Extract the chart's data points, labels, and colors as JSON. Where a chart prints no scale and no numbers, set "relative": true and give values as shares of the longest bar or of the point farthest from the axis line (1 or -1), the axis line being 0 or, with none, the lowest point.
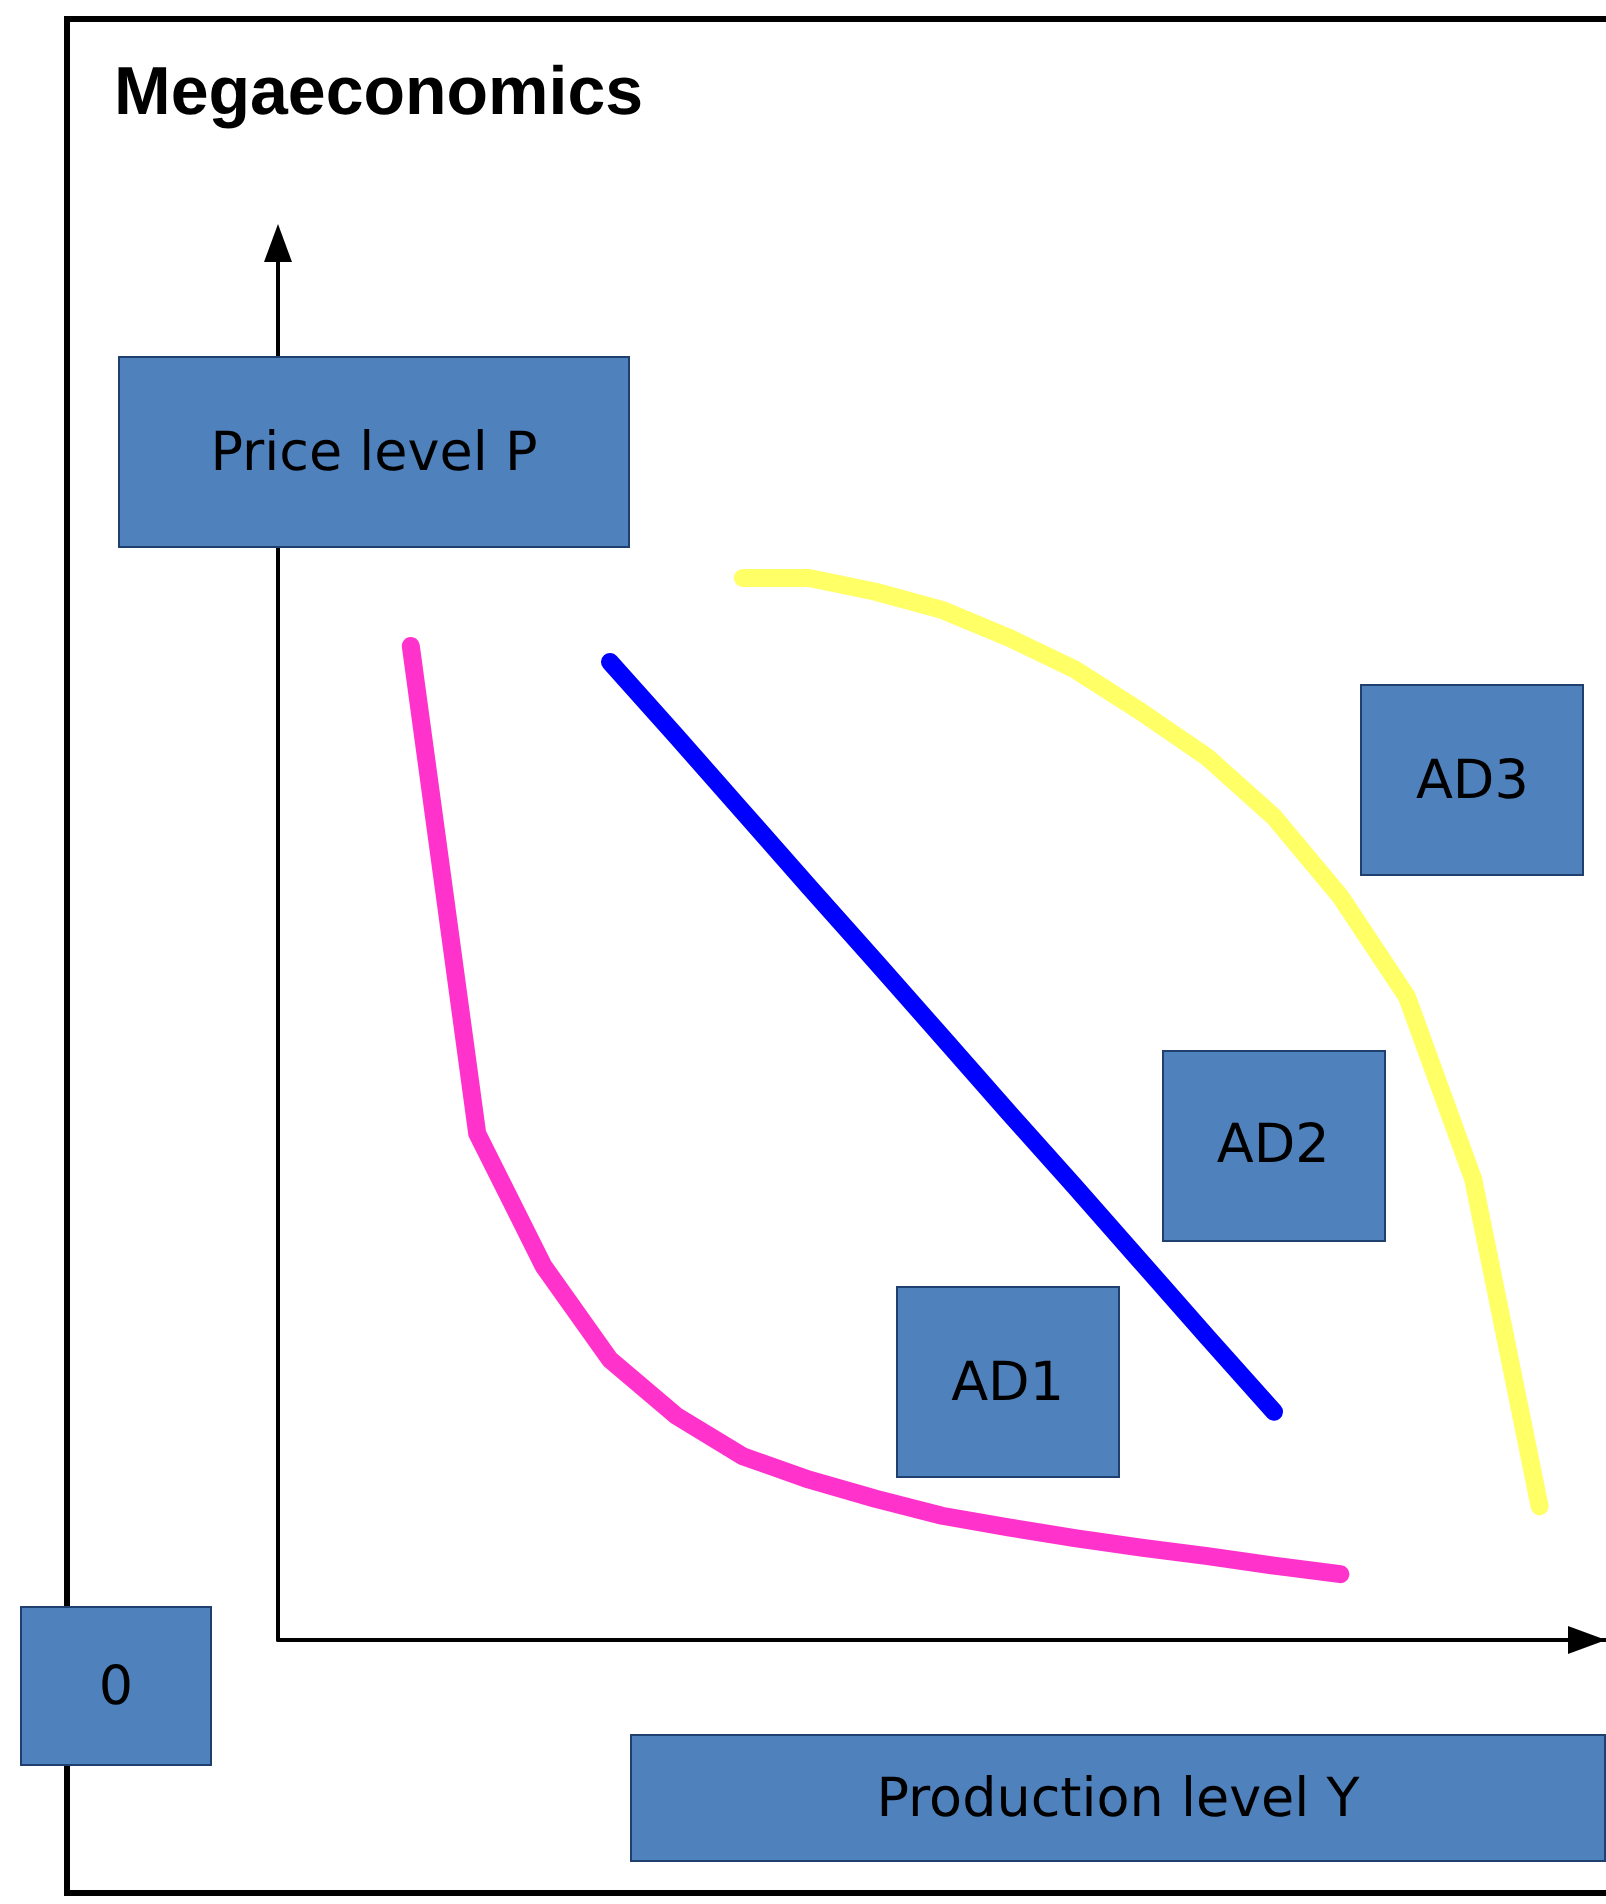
{
  "chart_data": {
    "type": "line",
    "title": "Megaeconomics",
    "xlabel": "Production level Y",
    "ylabel": "Price level P",
    "relative": true,
    "tick_labels": false,
    "grid": false,
    "legend": false,
    "marker": "none",
    "line_style": "solid",
    "annotations": [
      "0"
    ],
    "categories": [
      null,
      null,
      null,
      null,
      null,
      null,
      null,
      null,
      null,
      null,
      null,
      null,
      null,
      null,
      null,
      null,
      null,
      null,
      null,
      null,
      null
    ],
    "series": [
      {
        "name": "AD1",
        "color": "#ff33cc",
        "values": [
          null,
          null,
          0.936,
          0.477,
          0.352,
          0.264,
          0.211,
          0.173,
          0.151,
          0.133,
          0.117,
          0.106,
          0.096,
          0.087,
          0.079,
          0.07,
          0.062,
          null,
          null,
          null,
          null
        ]
      },
      {
        "name": "AD2",
        "color": "#0000ff",
        "values": [
          null,
          null,
          null,
          null,
          null,
          0.921,
          0.851,
          0.78,
          0.709,
          0.639,
          0.568,
          0.497,
          0.427,
          0.356,
          0.285,
          0.215,
          null,
          null,
          null,
          null,
          null
        ]
      },
      {
        "name": "AD3",
        "color": "#ffff66",
        "values": [
          null,
          null,
          null,
          null,
          null,
          null,
          null,
          1,
          1,
          0.987,
          0.97,
          0.944,
          0.914,
          0.874,
          0.831,
          0.775,
          0.7,
          0.606,
          0.434,
          0.126,
          null
        ]
      }
    ]
  }
}
